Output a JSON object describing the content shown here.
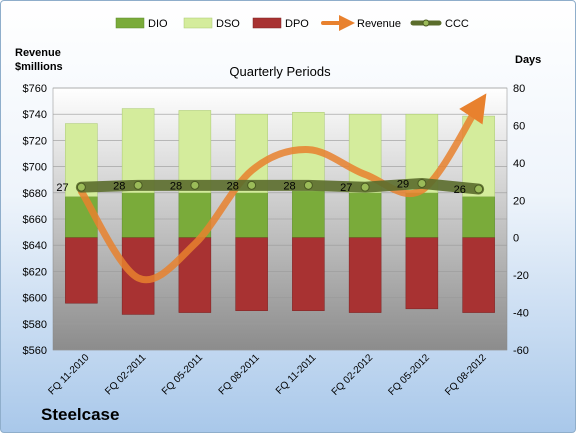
{
  "company": "Steelcase",
  "chart_data": {
    "type": "bar",
    "title": "Quarterly Periods",
    "left_axis_label_line1": "Revenue",
    "left_axis_label_line2": "$millions",
    "right_axis_label": "Days",
    "categories": [
      "FQ 11-2010",
      "FQ 02-2011",
      "FQ 05-2011",
      "FQ 08-2011",
      "FQ 11-2011",
      "FQ 02-2012",
      "FQ 05-2012",
      "FQ 08-2012"
    ],
    "left_ylim": [
      560,
      760
    ],
    "left_ticks": [
      "$560",
      "$580",
      "$600",
      "$620",
      "$640",
      "$660",
      "$680",
      "$700",
      "$720",
      "$740",
      "$760"
    ],
    "right_ylim": [
      -60,
      80
    ],
    "right_ticks": [
      "-60",
      "-40",
      "-20",
      "0",
      "20",
      "40",
      "60",
      "80"
    ],
    "legend": [
      "DIO",
      "DSO",
      "DPO",
      "Revenue",
      "CCC"
    ],
    "legend_position": "top",
    "series": [
      {
        "name": "DIO",
        "axis": "right",
        "color": "#7aab3a",
        "values": [
          22,
          24,
          24,
          24,
          25,
          24,
          24,
          22
        ]
      },
      {
        "name": "DSO",
        "axis": "right",
        "color": "#d4ec9c",
        "values": [
          61,
          69,
          68,
          66,
          67,
          66,
          66,
          65
        ]
      },
      {
        "name": "DPO",
        "axis": "right",
        "color": "#a83232",
        "values": [
          -35,
          -41,
          -40,
          -39,
          -39,
          -40,
          -38,
          -40
        ]
      },
      {
        "name": "Revenue",
        "axis": "left",
        "color": "#e8812e",
        "values": [
          681,
          615,
          641,
          697,
          713,
          694,
          682,
          747
        ]
      },
      {
        "name": "CCC",
        "axis": "right",
        "color": "#5b6d2c",
        "values": [
          27,
          28,
          28,
          28,
          28,
          27,
          29,
          26
        ]
      }
    ],
    "ccc_labels": [
      "27",
      "28",
      "28",
      "28",
      "28",
      "27",
      "29",
      "26"
    ],
    "grid": true
  }
}
